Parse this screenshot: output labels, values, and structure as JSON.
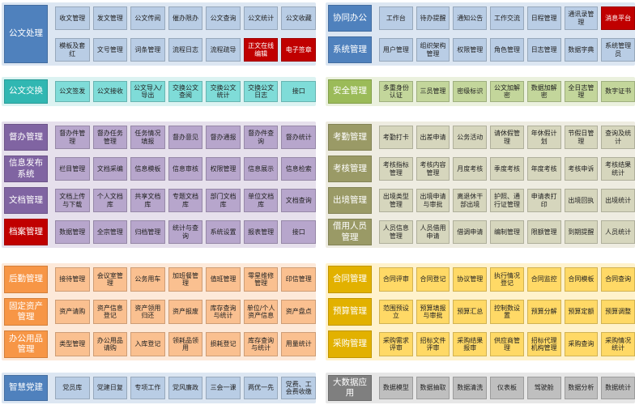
{
  "left": [
    {
      "rows": [
        {
          "title": "公文处理",
          "items": [
            "收文管理",
            "发文管理",
            "公文传阅",
            "催办限办",
            "公文查询",
            "公文统计",
            "公文收藏"
          ]
        },
        {
          "title": null,
          "items": [
            "模板及套红",
            "文号管理",
            "词条管理",
            "流程日志",
            "流程疏导",
            "正文在线编辑",
            "电子签章"
          ]
        }
      ]
    },
    {
      "rows": [
        {
          "title": "公文交换",
          "items": [
            "公文签发",
            "公文接收",
            "公文导入/导出",
            "交换公文查阅",
            "交换公文统计",
            "交换公文日志",
            "接口"
          ]
        }
      ]
    },
    {
      "rows": [
        {
          "title": "督办管理",
          "items": [
            "督办件管理",
            "督办任务管理",
            "任务情况填报",
            "督办意见",
            "督办通报",
            "督办件查询",
            "督办统计"
          ]
        },
        {
          "title": "信息发布系统",
          "items": [
            "栏目管理",
            "文档采编",
            "信息模板",
            "信息审核",
            "权限管理",
            "信息展示",
            "信息检索"
          ]
        },
        {
          "title": "文档管理",
          "items": [
            "文档上传与下载",
            "个人文档库",
            "共享文档库",
            "专题文档库",
            "部门文档库",
            "单位文档库",
            "文档查询"
          ]
        },
        {
          "title": "档案管理",
          "items": [
            "数据管理",
            "全宗管理",
            "归档管理",
            "统计与查询",
            "系统设置",
            "报表管理",
            "接口"
          ]
        }
      ]
    },
    {
      "rows": [
        {
          "title": "后勤管理",
          "items": [
            "接待管理",
            "会议室管理",
            "公务用车",
            "加班餐管理",
            "值班管理",
            "零星维修管理",
            "印信管理"
          ]
        },
        {
          "title": "固定资产管理",
          "items": [
            "资产请购",
            "资产信息登记",
            "资产领用归还",
            "资产报废",
            "库存查询与统计",
            "单位/个人资产信息",
            "资产盘点"
          ]
        },
        {
          "title": "办公用品管理",
          "items": [
            "类型管理",
            "办公用品请购",
            "入库登记",
            "领耗品领用",
            "损耗登记",
            "库存查询与统计",
            "用量统计"
          ]
        }
      ]
    },
    {
      "rows": [
        {
          "title": "智慧党建",
          "items": [
            "党员库",
            "党建日复",
            "专项工作",
            "党风廉政",
            "三会一课",
            "两优一先",
            "党费、工会费收缴"
          ]
        }
      ]
    }
  ],
  "right": [
    {
      "rows": [
        {
          "title": "协同办公",
          "items": [
            "工作台",
            "待办提醒",
            "通知公告",
            "工作交流",
            "日程管理",
            "通讯录管理",
            "消息平台"
          ]
        },
        {
          "title": "系统管理",
          "items": [
            "用户管理",
            "组织架构管理",
            "权限管理",
            "角色管理",
            "日志管理",
            "数据字典",
            "系统管理员"
          ]
        }
      ]
    },
    {
      "rows": [
        {
          "title": "安全管理",
          "items": [
            "多重身份认证",
            "三员管理",
            "密级标识",
            "公文加解密",
            "数据加解密",
            "全日志管理",
            "数字证书"
          ]
        }
      ]
    },
    {
      "rows": [
        {
          "title": "考勤管理",
          "items": [
            "考勤打卡",
            "出差申请",
            "公务活动",
            "请休假管理",
            "年休假计划",
            "节假日管理",
            "查询及统计"
          ]
        },
        {
          "title": "考核管理",
          "items": [
            "考核指标管理",
            "考核内容管理",
            "月度考核",
            "季度考核",
            "年度考核",
            "考核申诉",
            "考核结果统计"
          ]
        },
        {
          "title": "出境管理",
          "items": [
            "出境类型管理",
            "出境申请与审批",
            "离退休干部出境",
            "护照、通行证管理",
            "申请表打印",
            "出境回执",
            "出境统计"
          ]
        },
        {
          "title": "借用人员管理",
          "items": [
            "人员信息管理",
            "人员借用申请",
            "借调申请",
            "编制管理",
            "限额管理",
            "到期提醒",
            "人员统计"
          ]
        }
      ]
    },
    {
      "rows": [
        {
          "title": "合同管理",
          "items": [
            "合同评审",
            "合同登记",
            "协议管理",
            "执行情况登记",
            "合同监控",
            "合同模板",
            "合同查询"
          ]
        },
        {
          "title": "预算管理",
          "items": [
            "范围预设立",
            "预算填报与审批",
            "预算汇总",
            "控制数设置",
            "预算分解",
            "预算定额",
            "预算调整"
          ]
        },
        {
          "title": "采购管理",
          "items": [
            "采购需求评审",
            "招标文件评审",
            "采购结果报审",
            "供应商管理",
            "招标代理机构管理",
            "采购查询",
            "采购情况统计"
          ]
        }
      ]
    },
    {
      "rows": [
        {
          "title": "大数据应用",
          "items": [
            "数据模型",
            "数据抽取",
            "数据清洗",
            "仪表板",
            "驾驶舱",
            "数据分析",
            "数据统计"
          ]
        }
      ]
    }
  ]
}
